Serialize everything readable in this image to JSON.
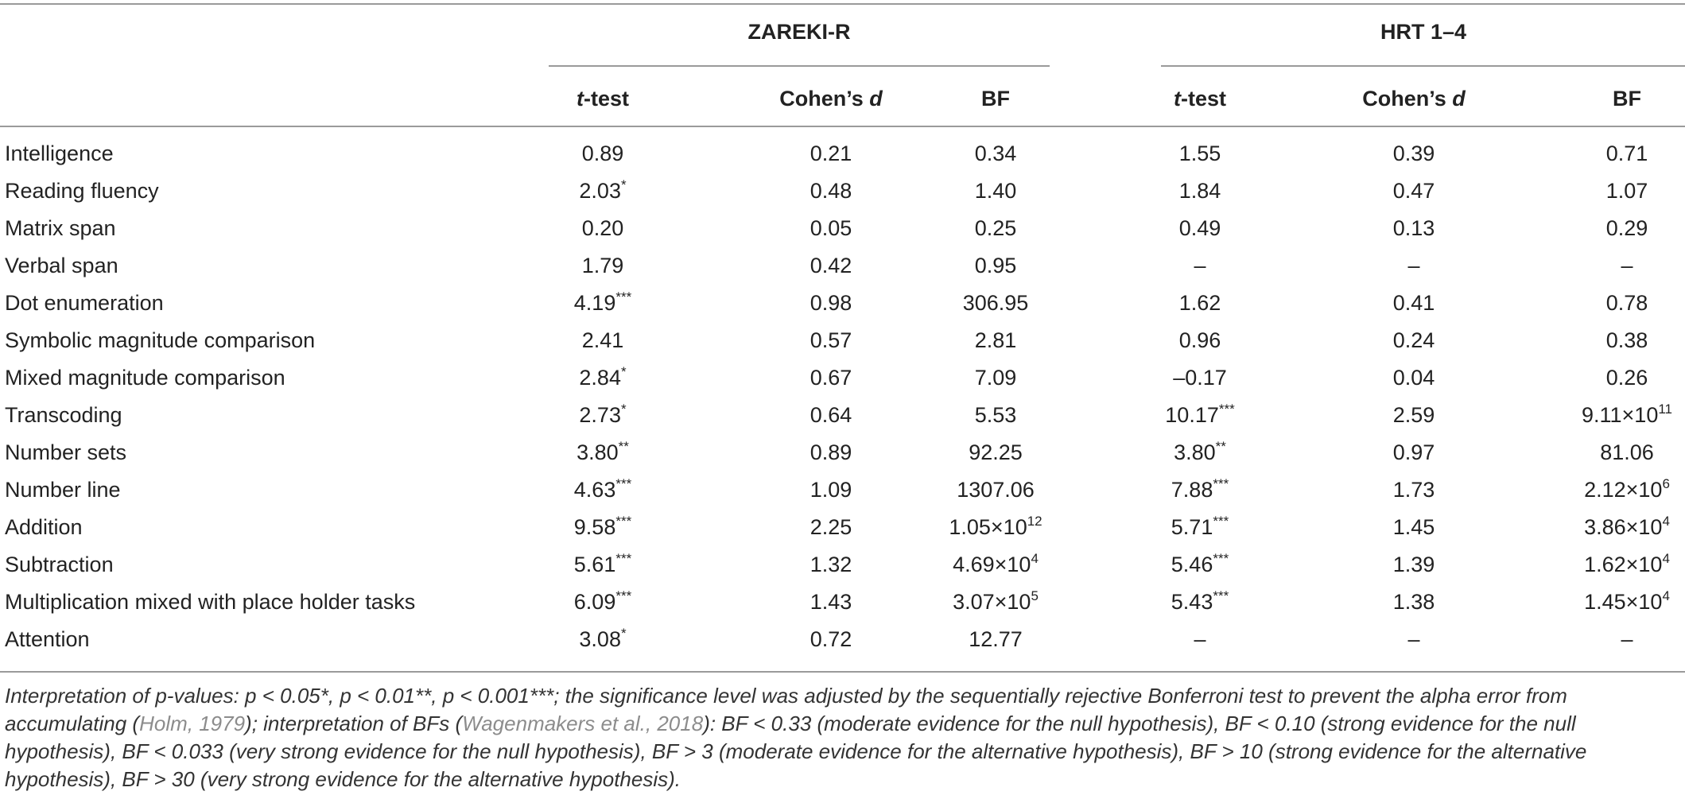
{
  "groups": [
    "ZAREKI-R",
    "HRT 1–4"
  ],
  "columns": [
    {
      "italic": "t",
      "rest": "-test"
    },
    {
      "italic": "",
      "rest": "Cohen’s ",
      "tail_italic": "d"
    },
    {
      "italic": "",
      "rest": "BF"
    },
    {
      "italic": "t",
      "rest": "-test"
    },
    {
      "italic": "",
      "rest": "Cohen’s ",
      "tail_italic": "d"
    },
    {
      "italic": "",
      "rest": "BF"
    }
  ],
  "rows": [
    {
      "label": "Intelligence",
      "cells": [
        [
          "0.89",
          ""
        ],
        [
          "0.21",
          ""
        ],
        [
          "0.34",
          ""
        ],
        [
          "1.55",
          ""
        ],
        [
          "0.39",
          ""
        ],
        [
          "0.71",
          ""
        ]
      ]
    },
    {
      "label": "Reading fluency",
      "cells": [
        [
          "2.03",
          "*"
        ],
        [
          "0.48",
          ""
        ],
        [
          "1.40",
          ""
        ],
        [
          "1.84",
          ""
        ],
        [
          "0.47",
          ""
        ],
        [
          "1.07",
          ""
        ]
      ]
    },
    {
      "label": "Matrix span",
      "cells": [
        [
          "0.20",
          ""
        ],
        [
          "0.05",
          ""
        ],
        [
          "0.25",
          ""
        ],
        [
          "0.49",
          ""
        ],
        [
          "0.13",
          ""
        ],
        [
          "0.29",
          ""
        ]
      ]
    },
    {
      "label": "Verbal span",
      "cells": [
        [
          "1.79",
          ""
        ],
        [
          "0.42",
          ""
        ],
        [
          "0.95",
          ""
        ],
        [
          "–",
          ""
        ],
        [
          "–",
          ""
        ],
        [
          "–",
          ""
        ]
      ]
    },
    {
      "label": "Dot enumeration",
      "cells": [
        [
          "4.19",
          "***"
        ],
        [
          "0.98",
          ""
        ],
        [
          "306.95",
          ""
        ],
        [
          "1.62",
          ""
        ],
        [
          "0.41",
          ""
        ],
        [
          "0.78",
          ""
        ]
      ]
    },
    {
      "label": "Symbolic magnitude comparison",
      "cells": [
        [
          "2.41",
          ""
        ],
        [
          "0.57",
          ""
        ],
        [
          "2.81",
          ""
        ],
        [
          "0.96",
          ""
        ],
        [
          "0.24",
          ""
        ],
        [
          "0.38",
          ""
        ]
      ]
    },
    {
      "label": "Mixed magnitude comparison",
      "cells": [
        [
          "2.84",
          "*"
        ],
        [
          "0.67",
          ""
        ],
        [
          "7.09",
          ""
        ],
        [
          "–0.17",
          ""
        ],
        [
          "0.04",
          ""
        ],
        [
          "0.26",
          ""
        ]
      ]
    },
    {
      "label": "Transcoding",
      "cells": [
        [
          "2.73",
          "*"
        ],
        [
          "0.64",
          ""
        ],
        [
          "5.53",
          ""
        ],
        [
          "10.17",
          "***"
        ],
        [
          "2.59",
          ""
        ],
        [
          "9.11×10",
          "11"
        ]
      ]
    },
    {
      "label": "Number sets",
      "cells": [
        [
          "3.80",
          "**"
        ],
        [
          "0.89",
          ""
        ],
        [
          "92.25",
          ""
        ],
        [
          "3.80",
          "**"
        ],
        [
          "0.97",
          ""
        ],
        [
          "81.06",
          ""
        ]
      ]
    },
    {
      "label": "Number line",
      "cells": [
        [
          "4.63",
          "***"
        ],
        [
          "1.09",
          ""
        ],
        [
          "1307.06",
          ""
        ],
        [
          "7.88",
          "***"
        ],
        [
          "1.73",
          ""
        ],
        [
          "2.12×10",
          "6"
        ]
      ]
    },
    {
      "label": "Addition",
      "cells": [
        [
          "9.58",
          "***"
        ],
        [
          "2.25",
          ""
        ],
        [
          "1.05×10",
          "12"
        ],
        [
          "5.71",
          "***"
        ],
        [
          "1.45",
          ""
        ],
        [
          "3.86×10",
          "4"
        ]
      ]
    },
    {
      "label": "Subtraction",
      "cells": [
        [
          "5.61",
          "***"
        ],
        [
          "1.32",
          ""
        ],
        [
          "4.69×10",
          "4"
        ],
        [
          "5.46",
          "***"
        ],
        [
          "1.39",
          ""
        ],
        [
          "1.62×10",
          "4"
        ]
      ]
    },
    {
      "label": "Multiplication mixed with place holder tasks",
      "cells": [
        [
          "6.09",
          "***"
        ],
        [
          "1.43",
          ""
        ],
        [
          "3.07×10",
          "5"
        ],
        [
          "5.43",
          "***"
        ],
        [
          "1.38",
          ""
        ],
        [
          "1.45×10",
          "4"
        ]
      ]
    },
    {
      "label": "Attention",
      "cells": [
        [
          "3.08",
          "*"
        ],
        [
          "0.72",
          ""
        ],
        [
          "12.77",
          ""
        ],
        [
          "–",
          ""
        ],
        [
          "–",
          ""
        ],
        [
          "–",
          ""
        ]
      ]
    }
  ],
  "footnote": {
    "part1": "Interpretation of p-values: p < 0.05*, p < 0.01**, p < 0.001***; the significance level was adjusted by the sequentially rejective Bonferroni test to prevent the alpha error from accumulating (",
    "ref1": "Holm, 1979",
    "part2": "); interpretation of BFs (",
    "ref2": "Wagenmakers et al., 2018",
    "part3": "): BF < 0.33 (moderate evidence for the null hypothesis), BF < 0.10 (strong evidence for the null hypothesis), BF < 0.033 (very strong evidence for the null hypothesis), BF > 3 (moderate evidence for the alternative hypothesis), BF > 10 (strong evidence for the alternative hypothesis), BF > 30 (very strong evidence for the alternative hypothesis)."
  }
}
